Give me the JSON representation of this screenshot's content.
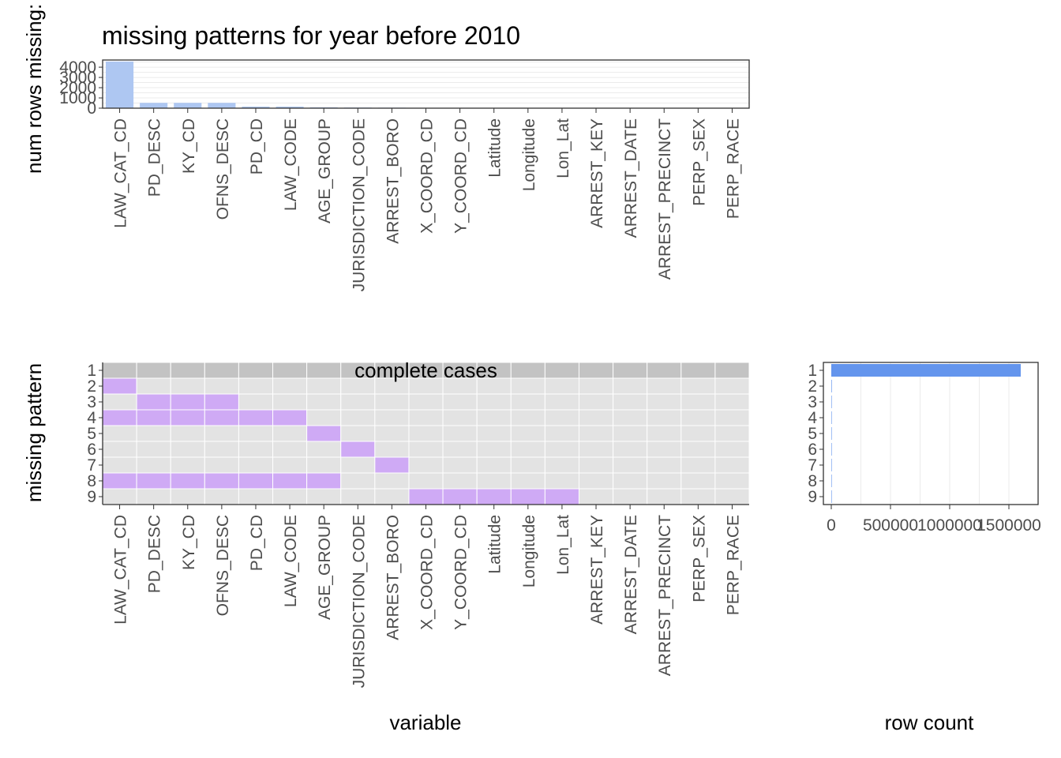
{
  "chart_data": [
    {
      "type": "bar",
      "title": "missing patterns for year before 2010",
      "ylabel": "num rows missing:",
      "xlabel": "",
      "categories": [
        "LAW_CAT_CD",
        "PD_DESC",
        "KY_CD",
        "OFNS_DESC",
        "PD_CD",
        "LAW_CODE",
        "AGE_GROUP",
        "JURISDICTION_CODE",
        "ARREST_BORO",
        "X_COORD_CD",
        "Y_COORD_CD",
        "Latitude",
        "Longitude",
        "Lon_Lat",
        "ARREST_KEY",
        "ARREST_DATE",
        "ARREST_PRECINCT",
        "PERP_SEX",
        "PERP_RACE"
      ],
      "values": [
        4550,
        520,
        520,
        520,
        150,
        150,
        80,
        60,
        50,
        0,
        0,
        0,
        0,
        0,
        0,
        0,
        0,
        0,
        0
      ],
      "yticks": [
        "0",
        "1000",
        "2000",
        "3000",
        "4000"
      ],
      "ylim": [
        0,
        4700
      ],
      "bar_color": "#aec7f2"
    },
    {
      "type": "heatmap",
      "title": "",
      "xlabel": "variable",
      "ylabel": "missing pattern",
      "x": [
        "LAW_CAT_CD",
        "PD_DESC",
        "KY_CD",
        "OFNS_DESC",
        "PD_CD",
        "LAW_CODE",
        "AGE_GROUP",
        "JURISDICTION_CODE",
        "ARREST_BORO",
        "X_COORD_CD",
        "Y_COORD_CD",
        "Latitude",
        "Longitude",
        "Lon_Lat",
        "ARREST_KEY",
        "ARREST_DATE",
        "ARREST_PRECINCT",
        "PERP_SEX",
        "PERP_RACE"
      ],
      "y": [
        "1",
        "2",
        "3",
        "4",
        "5",
        "6",
        "7",
        "8",
        "9"
      ],
      "annotation": "complete cases",
      "missing": [
        [],
        [
          0
        ],
        [
          1,
          2,
          3
        ],
        [
          0,
          1,
          2,
          3,
          4,
          5
        ],
        [
          6
        ],
        [
          7
        ],
        [
          8
        ],
        [
          0,
          1,
          2,
          3,
          4,
          5,
          6
        ],
        [
          9,
          10,
          11,
          12,
          13
        ]
      ],
      "colors": {
        "missing": "#cfaaf5",
        "not_missing": "#e3e3e3",
        "complete": "#c3c3c3"
      }
    },
    {
      "type": "bar",
      "orientation": "horizontal",
      "title": "",
      "xlabel": "row count",
      "ylabel": "",
      "categories": [
        "1",
        "2",
        "3",
        "4",
        "5",
        "6",
        "7",
        "8",
        "9"
      ],
      "values": [
        1600000,
        4500,
        500,
        100,
        80,
        60,
        50,
        30,
        20
      ],
      "xticks": [
        "0",
        "500000",
        "1000000",
        "1500000"
      ],
      "xlim": [
        0,
        1680000
      ],
      "bar_color": "#6495ed"
    }
  ]
}
